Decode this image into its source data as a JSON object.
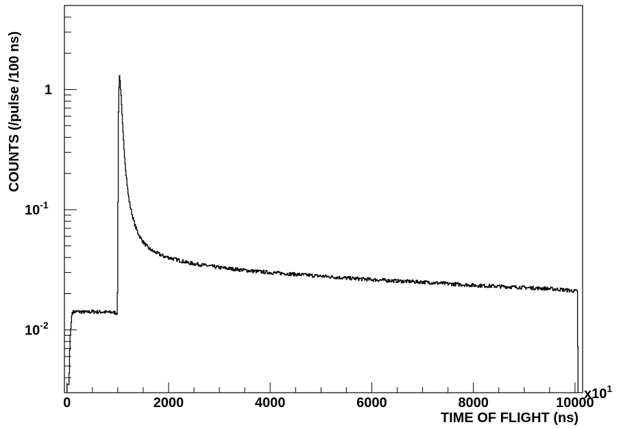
{
  "chart_data": {
    "type": "line",
    "style": "step-histogram",
    "xlabel": "TIME OF FLIGHT (ns)",
    "ylabel": "COUNTS (/pulse /100 ns)",
    "x_multiplier_label": "x10",
    "x_multiplier_exponent": "1",
    "x_scale": "linear",
    "y_scale": "log",
    "xlim": [
      -50,
      10150
    ],
    "ylim": [
      0.003,
      5
    ],
    "grid": false,
    "legend": "none",
    "x_tick_labels": [
      "0",
      "2000",
      "4000",
      "6000",
      "8000",
      "10000"
    ],
    "x_tick_values": [
      0,
      2000,
      4000,
      6000,
      8000,
      10000
    ],
    "y_tick_labels": [
      {
        "value": 0.01,
        "base": "10",
        "exp": "-2"
      },
      {
        "value": 0.1,
        "base": "10",
        "exp": "-1"
      },
      {
        "value": 1,
        "base": "1",
        "exp": ""
      }
    ],
    "series": [
      {
        "x": [
          0,
          40,
          60,
          100,
          200,
          300,
          400,
          500,
          600,
          700,
          800,
          900,
          990,
          1000,
          1010,
          1030,
          1050,
          1070,
          1090,
          1110,
          1130,
          1150,
          1175,
          1200,
          1230,
          1260,
          1300,
          1350,
          1400,
          1450,
          1500,
          1600,
          1700,
          1800,
          1900,
          2000,
          2200,
          2400,
          2600,
          2800,
          3000,
          3300,
          3600,
          4000,
          4500,
          5000,
          5500,
          6000,
          6500,
          7000,
          7500,
          8000,
          8500,
          9000,
          9500,
          9800,
          10000,
          10050,
          10060
        ],
        "y": [
          0.0035,
          0.0035,
          0.0085,
          0.014,
          0.0142,
          0.0141,
          0.014,
          0.0142,
          0.0141,
          0.0141,
          0.014,
          0.014,
          0.0138,
          0.028,
          0.5,
          1.38,
          1.12,
          0.8,
          0.55,
          0.4,
          0.3,
          0.23,
          0.18,
          0.14,
          0.115,
          0.1,
          0.085,
          0.072,
          0.064,
          0.058,
          0.054,
          0.048,
          0.045,
          0.043,
          0.041,
          0.04,
          0.038,
          0.036,
          0.035,
          0.034,
          0.033,
          0.032,
          0.031,
          0.03,
          0.029,
          0.028,
          0.027,
          0.0262,
          0.0255,
          0.025,
          0.0242,
          0.0235,
          0.023,
          0.0225,
          0.022,
          0.0215,
          0.021,
          0.021,
          0.0025
        ]
      }
    ]
  }
}
